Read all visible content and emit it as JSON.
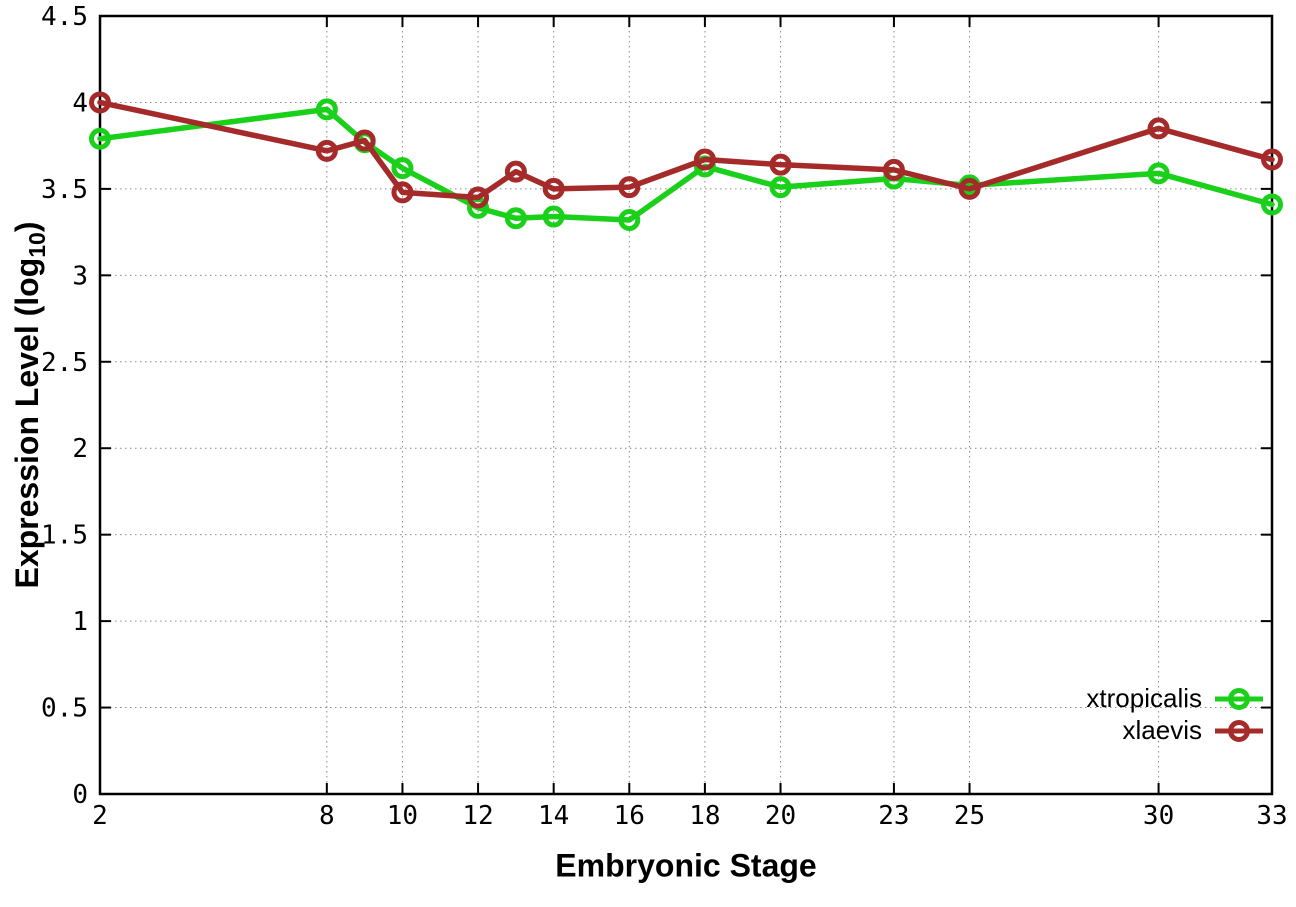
{
  "chart_data": {
    "type": "line",
    "title": "",
    "xlabel": "Embryonic Stage",
    "ylabel": "Expression Level (log10)",
    "ylabel_parts": {
      "pre": "Expression Level (log",
      "sub": "10",
      "post": ")"
    },
    "x": [
      2,
      8,
      9,
      10,
      12,
      13,
      14,
      16,
      18,
      20,
      23,
      25,
      30,
      33
    ],
    "xticks": [
      2,
      8,
      10,
      12,
      14,
      16,
      18,
      20,
      23,
      25,
      30,
      33
    ],
    "xtick_labels": [
      "2",
      "8",
      "10",
      "12",
      "14",
      "16",
      "18",
      "20",
      "23",
      "25",
      "30",
      "33"
    ],
    "yticks": [
      0,
      0.5,
      1,
      1.5,
      2,
      2.5,
      3,
      3.5,
      4,
      4.5
    ],
    "ytick_labels": [
      "0",
      "0.5",
      "1",
      "1.5",
      "2",
      "2.5",
      "3",
      "3.5",
      "4",
      "4.5"
    ],
    "xlim": [
      2,
      33
    ],
    "ylim": [
      0,
      4.5
    ],
    "grid": true,
    "grid_style": "dotted",
    "legend_position": "bottom-right",
    "marker": "open-circle",
    "series": [
      {
        "name": "xtropicalis",
        "color": "#1BD01B",
        "values": [
          3.79,
          3.96,
          3.77,
          3.62,
          3.39,
          3.33,
          3.34,
          3.32,
          3.63,
          3.51,
          3.56,
          3.52,
          3.59,
          3.41
        ]
      },
      {
        "name": "xlaevis",
        "color": "#A52A2A",
        "values": [
          4.0,
          3.72,
          3.78,
          3.48,
          3.45,
          3.6,
          3.5,
          3.51,
          3.67,
          3.64,
          3.61,
          3.5,
          3.85,
          3.67
        ]
      }
    ],
    "colors": {
      "frame": "#000000",
      "grid": "#8a8a8a",
      "tick_text": "#000000",
      "background": "#ffffff"
    }
  }
}
